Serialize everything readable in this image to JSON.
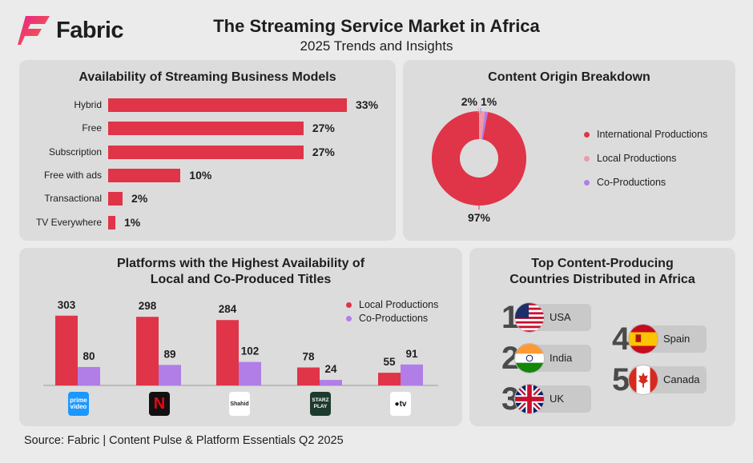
{
  "brand": "Fabric",
  "title": "The Streaming Service Market in Africa",
  "subtitle": "2025 Trends and Insights",
  "source": "Source: Fabric | Content Pulse & Platform Essentials Q2 2025",
  "colors": {
    "red": "#e03448",
    "pink": "#ee9aa6",
    "purple": "#b07ee6",
    "panel": "#dcdcdc"
  },
  "chart_data": [
    {
      "type": "bar",
      "orientation": "horizontal",
      "title": "Availability of Streaming Business Models",
      "categories": [
        "Hybrid",
        "Free",
        "Subscription",
        "Free with ads",
        "Transactional",
        "TV Everywhere"
      ],
      "values": [
        33,
        27,
        27,
        10,
        2,
        1
      ],
      "value_labels": [
        "33%",
        "27%",
        "27%",
        "10%",
        "2%",
        "1%"
      ],
      "unit": "%"
    },
    {
      "type": "pie",
      "style": "donut",
      "title": "Content Origin Breakdown",
      "labels": [
        "International Productions",
        "Local Productions",
        "Co-Productions"
      ],
      "values": [
        97,
        2,
        1
      ],
      "value_labels": [
        "97%",
        "2%",
        "1%"
      ],
      "colors": [
        "#e03448",
        "#ee9aa6",
        "#b07ee6"
      ],
      "legend": "right"
    },
    {
      "type": "bar",
      "title_line1": "Platforms with the Highest Availability of",
      "title_line2": "Local and Co-Produced Titles",
      "categories": [
        "prime-video-logo",
        "netflix-logo",
        "shahid-logo",
        "starzplay-logo",
        "appletv-logo"
      ],
      "series": [
        {
          "name": "Local Productions",
          "values": [
            303,
            298,
            284,
            78,
            55
          ],
          "color": "#e03448"
        },
        {
          "name": "Co-Productions",
          "values": [
            80,
            89,
            102,
            24,
            91
          ],
          "color": "#b07ee6"
        }
      ],
      "logo_text": {
        "prime": "prime",
        "video": "video",
        "netflix": "N",
        "shahid": "Shahid",
        "starz": "STARZ",
        "play": "PLAY",
        "appletv": "tv"
      },
      "ylim": [
        0,
        330
      ],
      "legend": "top-right"
    }
  ],
  "countries": {
    "title_line1": "Top Content-Producing",
    "title_line2": "Countries Distributed in Africa",
    "items": [
      {
        "rank": "1",
        "name": "USA"
      },
      {
        "rank": "2",
        "name": "India"
      },
      {
        "rank": "3",
        "name": "UK"
      },
      {
        "rank": "4",
        "name": "Spain"
      },
      {
        "rank": "5",
        "name": "Canada"
      }
    ]
  }
}
